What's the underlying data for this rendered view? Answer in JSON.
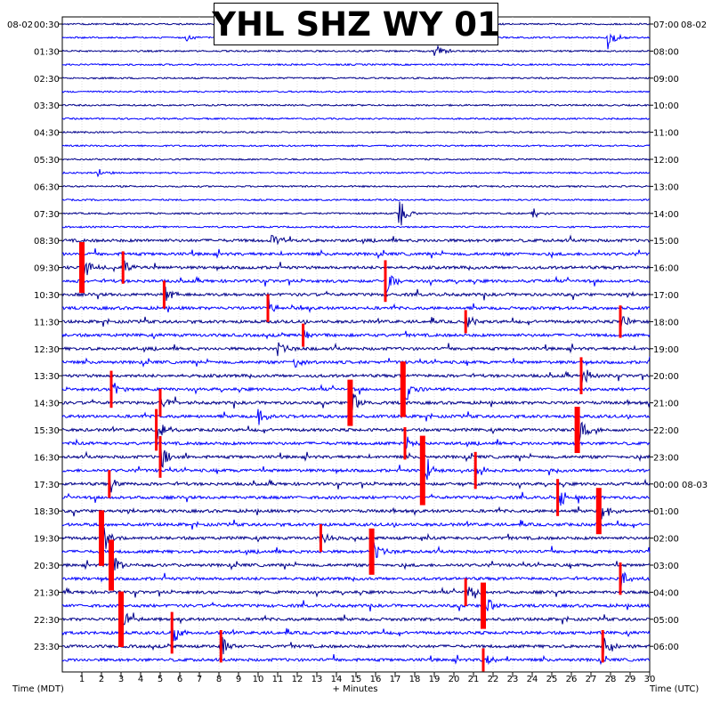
{
  "chart_data": {
    "type": "line",
    "title": "YHL SHZ WY 01",
    "date_left": "08-02",
    "date_right": "08-02",
    "xlabel": "+ Minutes",
    "xlabel_left": "Time (MDT)",
    "xlabel_right": "Time (UTC)",
    "x_ticks": [
      "1",
      "2",
      "3",
      "4",
      "5",
      "6",
      "7",
      "8",
      "9",
      "10",
      "11",
      "12",
      "13",
      "14",
      "15",
      "16",
      "17",
      "18",
      "19",
      "20",
      "21",
      "22",
      "23",
      "24",
      "25",
      "26",
      "27",
      "28",
      "29",
      "30"
    ],
    "xlim": [
      0,
      30
    ],
    "left_labels": [
      "00:30",
      "01:30",
      "02:30",
      "03:30",
      "04:30",
      "05:30",
      "06:30",
      "07:30",
      "08:30",
      "09:30",
      "10:30",
      "11:30",
      "12:30",
      "13:30",
      "14:30",
      "15:30",
      "16:30",
      "17:30",
      "18:30",
      "19:30",
      "20:30",
      "21:30",
      "22:30",
      "23:30"
    ],
    "right_labels": [
      "07:00",
      "08:00",
      "09:00",
      "10:00",
      "11:00",
      "12:00",
      "13:00",
      "14:00",
      "15:00",
      "16:00",
      "17:00",
      "18:00",
      "19:00",
      "20:00",
      "21:00",
      "22:00",
      "23:00",
      "00:00 08-03",
      "01:00",
      "02:00",
      "03:00",
      "04:00",
      "05:00",
      "06:00"
    ],
    "trace_count": 48,
    "trace_colors": [
      "#00008b",
      "#0000ff"
    ],
    "clip_color": "#ff0000",
    "quiet_rows_until": 16,
    "events": [
      {
        "row": 1,
        "minute": 6.3,
        "amp": 5
      },
      {
        "row": 1,
        "minute": 19.6,
        "amp": 10
      },
      {
        "row": 1,
        "minute": 27.8,
        "amp": 18
      },
      {
        "row": 2,
        "minute": 19.0,
        "amp": 14
      },
      {
        "row": 11,
        "minute": 1.8,
        "amp": 5
      },
      {
        "row": 14,
        "minute": 17.2,
        "amp": 22
      },
      {
        "row": 14,
        "minute": 24.0,
        "amp": 8
      },
      {
        "row": 16,
        "minute": 10.7,
        "amp": 8
      },
      {
        "row": 18,
        "minute": 1.0,
        "amp": 22,
        "clip": true
      },
      {
        "row": 18,
        "minute": 3.1,
        "amp": 14,
        "clip": true
      },
      {
        "row": 19,
        "minute": 16.5,
        "amp": 18,
        "clip": true
      },
      {
        "row": 20,
        "minute": 5.2,
        "amp": 12,
        "clip": true
      },
      {
        "row": 21,
        "minute": 10.5,
        "amp": 12,
        "clip": true
      },
      {
        "row": 22,
        "minute": 20.6,
        "amp": 10,
        "clip": true
      },
      {
        "row": 22,
        "minute": 28.5,
        "amp": 14,
        "clip": true
      },
      {
        "row": 23,
        "minute": 12.3,
        "amp": 10,
        "clip": true
      },
      {
        "row": 24,
        "minute": 11.0,
        "amp": 10
      },
      {
        "row": 25,
        "minute": 11.8,
        "amp": 10
      },
      {
        "row": 26,
        "minute": 26.5,
        "amp": 16,
        "clip": true
      },
      {
        "row": 27,
        "minute": 2.5,
        "amp": 16,
        "clip": true
      },
      {
        "row": 27,
        "minute": 17.4,
        "amp": 24,
        "clip": true
      },
      {
        "row": 28,
        "minute": 5.0,
        "amp": 12,
        "clip": true
      },
      {
        "row": 28,
        "minute": 14.7,
        "amp": 20,
        "clip": true
      },
      {
        "row": 29,
        "minute": 10.0,
        "amp": 10
      },
      {
        "row": 30,
        "minute": 4.8,
        "amp": 18,
        "clip": true
      },
      {
        "row": 30,
        "minute": 26.3,
        "amp": 20,
        "clip": true
      },
      {
        "row": 31,
        "minute": 17.5,
        "amp": 14,
        "clip": true
      },
      {
        "row": 32,
        "minute": 5.0,
        "amp": 18,
        "clip": true
      },
      {
        "row": 33,
        "minute": 18.4,
        "amp": 30,
        "clip": true
      },
      {
        "row": 33,
        "minute": 21.1,
        "amp": 16,
        "clip": true
      },
      {
        "row": 34,
        "minute": 2.4,
        "amp": 12,
        "clip": true
      },
      {
        "row": 35,
        "minute": 25.3,
        "amp": 16,
        "clip": true
      },
      {
        "row": 36,
        "minute": 27.4,
        "amp": 20,
        "clip": true
      },
      {
        "row": 38,
        "minute": 2.0,
        "amp": 24,
        "clip": true
      },
      {
        "row": 38,
        "minute": 13.2,
        "amp": 12,
        "clip": true
      },
      {
        "row": 39,
        "minute": 15.8,
        "amp": 20,
        "clip": true
      },
      {
        "row": 40,
        "minute": 2.5,
        "amp": 22,
        "clip": true
      },
      {
        "row": 41,
        "minute": 28.5,
        "amp": 14,
        "clip": true
      },
      {
        "row": 42,
        "minute": 20.6,
        "amp": 12,
        "clip": true
      },
      {
        "row": 43,
        "minute": 21.5,
        "amp": 20,
        "clip": true
      },
      {
        "row": 44,
        "minute": 3.0,
        "amp": 24,
        "clip": true
      },
      {
        "row": 45,
        "minute": 5.6,
        "amp": 18,
        "clip": true
      },
      {
        "row": 46,
        "minute": 8.1,
        "amp": 14,
        "clip": true
      },
      {
        "row": 46,
        "minute": 27.6,
        "amp": 14,
        "clip": true
      },
      {
        "row": 47,
        "minute": 21.5,
        "amp": 10,
        "clip": true
      }
    ]
  }
}
